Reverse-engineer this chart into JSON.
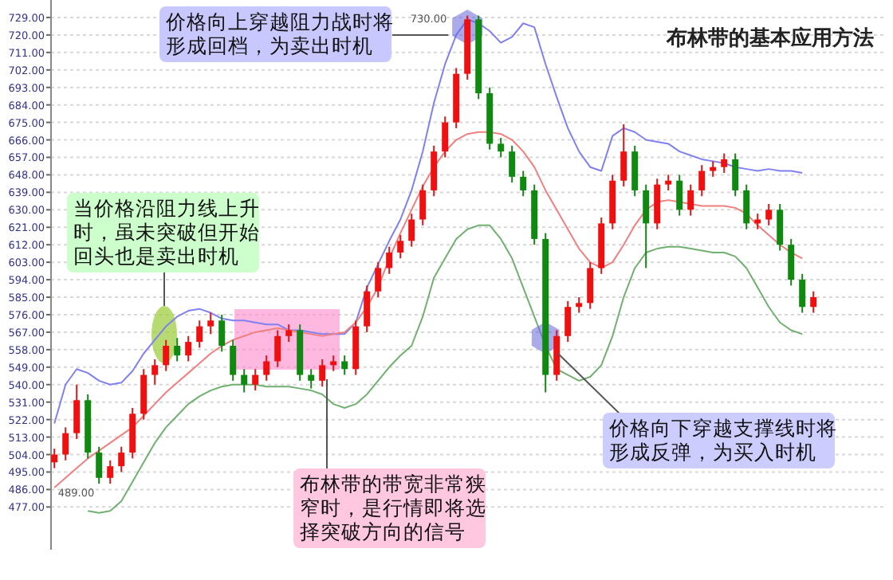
{
  "chart_data": {
    "type": "candlestick",
    "title": "布林带的基本应用方法",
    "categories": [
      null,
      null,
      null,
      null,
      null,
      null,
      null,
      null,
      null,
      null,
      null,
      null,
      null,
      null,
      null,
      null,
      null,
      null,
      null,
      null,
      null,
      null,
      null,
      null,
      null,
      null,
      null,
      null,
      null,
      null,
      null,
      null,
      null,
      null,
      null,
      null,
      null,
      null,
      null,
      null,
      null,
      null,
      null,
      null,
      null,
      null,
      null,
      null,
      null,
      null,
      null,
      null,
      null,
      null,
      null,
      null,
      null,
      null,
      null,
      null,
      null,
      null,
      null,
      null,
      null,
      null,
      null,
      null,
      null
    ],
    "ohlc": [
      [
        500,
        507,
        497,
        504
      ],
      [
        504,
        518,
        501,
        515
      ],
      [
        515,
        540,
        512,
        532
      ],
      [
        532,
        535,
        502,
        505
      ],
      [
        505,
        508,
        489,
        492
      ],
      [
        492,
        501,
        489,
        498
      ],
      [
        498,
        508,
        495,
        505
      ],
      [
        505,
        528,
        502,
        525
      ],
      [
        525,
        548,
        522,
        545
      ],
      [
        545,
        553,
        540,
        550
      ],
      [
        550,
        563,
        547,
        560
      ],
      [
        560,
        564,
        552,
        555
      ],
      [
        555,
        565,
        552,
        562
      ],
      [
        562,
        573,
        559,
        570
      ],
      [
        570,
        577,
        566,
        573
      ],
      [
        573,
        576,
        557,
        560
      ],
      [
        560,
        563,
        542,
        545
      ],
      [
        545,
        548,
        536,
        540
      ],
      [
        540,
        548,
        537,
        545
      ],
      [
        545,
        555,
        542,
        552
      ],
      [
        552,
        568,
        549,
        565
      ],
      [
        565,
        571,
        562,
        568
      ],
      [
        568,
        571,
        542,
        545
      ],
      [
        545,
        548,
        538,
        542
      ],
      [
        542,
        553,
        539,
        550
      ],
      [
        550,
        555,
        547,
        552
      ],
      [
        552,
        555,
        545,
        548
      ],
      [
        548,
        573,
        545,
        570
      ],
      [
        570,
        591,
        567,
        588
      ],
      [
        588,
        603,
        585,
        600
      ],
      [
        600,
        611,
        597,
        608
      ],
      [
        608,
        617,
        605,
        614
      ],
      [
        614,
        628,
        611,
        625
      ],
      [
        625,
        643,
        622,
        640
      ],
      [
        640,
        663,
        637,
        660
      ],
      [
        660,
        678,
        657,
        675
      ],
      [
        675,
        703,
        672,
        700
      ],
      [
        700,
        730,
        697,
        728
      ],
      [
        728,
        730,
        687,
        690
      ],
      [
        690,
        693,
        661,
        664
      ],
      [
        664,
        667,
        657,
        660
      ],
      [
        660,
        663,
        644,
        647
      ],
      [
        647,
        650,
        637,
        640
      ],
      [
        640,
        643,
        612,
        615
      ],
      [
        615,
        618,
        536,
        545
      ],
      [
        545,
        568,
        542,
        565
      ],
      [
        565,
        583,
        562,
        580
      ],
      [
        580,
        585,
        577,
        582
      ],
      [
        582,
        603,
        579,
        600
      ],
      [
        600,
        626,
        597,
        623
      ],
      [
        623,
        648,
        620,
        645
      ],
      [
        645,
        674,
        642,
        660
      ],
      [
        660,
        663,
        637,
        640
      ],
      [
        640,
        643,
        600,
        623
      ],
      [
        623,
        646,
        620,
        643
      ],
      [
        643,
        648,
        640,
        645
      ],
      [
        645,
        648,
        627,
        630
      ],
      [
        630,
        643,
        627,
        640
      ],
      [
        640,
        653,
        637,
        650
      ],
      [
        650,
        655,
        647,
        652
      ],
      [
        652,
        659,
        649,
        656
      ],
      [
        656,
        659,
        637,
        640
      ],
      [
        640,
        643,
        620,
        623
      ],
      [
        623,
        628,
        620,
        625
      ],
      [
        625,
        633,
        622,
        630
      ],
      [
        630,
        633,
        609,
        612
      ],
      [
        612,
        615,
        591,
        594
      ],
      [
        594,
        597,
        577,
        580
      ],
      [
        580,
        588,
        577,
        585
      ]
    ],
    "series": [
      {
        "type": "line",
        "color": "#8080f0",
        "values": [
          520,
          540,
          548,
          546,
          542,
          540,
          541,
          547,
          556,
          563,
          570,
          575,
          578,
          579,
          577,
          574,
          573,
          573,
          572,
          571,
          571,
          568,
          568,
          567,
          566,
          566,
          566,
          572,
          590,
          602,
          614,
          625,
          640,
          660,
          685,
          705,
          720,
          728,
          726,
          722,
          716,
          719,
          726,
          724,
          705,
          688,
          672,
          660,
          652,
          650,
          668,
          672,
          670,
          666,
          665,
          664,
          660,
          658,
          656,
          655,
          654,
          652,
          651,
          650,
          651,
          650,
          650,
          649,
          null
        ]
      },
      {
        "type": "line",
        "color": "#f08080",
        "values": [
          487,
          492,
          497,
          502,
          506,
          510,
          514,
          518,
          524,
          530,
          536,
          541,
          546,
          551,
          556,
          560,
          563,
          565,
          567,
          568,
          569,
          568,
          567,
          566,
          565,
          566,
          567,
          572,
          580,
          590,
          605,
          618,
          630,
          642,
          652,
          660,
          666,
          669,
          670,
          670,
          669,
          666,
          660,
          652,
          640,
          630,
          620,
          610,
          603,
          600,
          603,
          612,
          622,
          630,
          634,
          635,
          634,
          633,
          632,
          632,
          632,
          631,
          628,
          622,
          617,
          612,
          608,
          605,
          null
        ]
      },
      {
        "type": "line",
        "color": "#70b070",
        "values": [
          null,
          null,
          null,
          475,
          474,
          475,
          480,
          490,
          500,
          510,
          518,
          524,
          530,
          534,
          537,
          539,
          540,
          540,
          540,
          539,
          539,
          539,
          538,
          537,
          535,
          530,
          528,
          530,
          535,
          542,
          549,
          555,
          560,
          575,
          595,
          605,
          615,
          620,
          622,
          622,
          615,
          605,
          590,
          575,
          560,
          548,
          545,
          542,
          544,
          550,
          565,
          585,
          600,
          608,
          610,
          611,
          611,
          610,
          609,
          608,
          608,
          606,
          600,
          590,
          580,
          572,
          568,
          566,
          null
        ]
      }
    ],
    "ylim": [
      455,
      738
    ],
    "yticks": [
      {
        "value": 477,
        "label": "477.00"
      },
      {
        "value": 486,
        "label": "486.00"
      },
      {
        "value": 495,
        "label": "495.00"
      },
      {
        "value": 504,
        "label": "504.00"
      },
      {
        "value": 513,
        "label": "513.00"
      },
      {
        "value": 522,
        "label": "522.00"
      },
      {
        "value": 531,
        "label": "531.00"
      },
      {
        "value": 540,
        "label": "540.00"
      },
      {
        "value": 549,
        "label": "549.00"
      },
      {
        "value": 558,
        "label": "558.00"
      },
      {
        "value": 567,
        "label": "567.00"
      },
      {
        "value": 576,
        "label": "576.00"
      },
      {
        "value": 585,
        "label": "585.00"
      },
      {
        "value": 594,
        "label": "594.00"
      },
      {
        "value": 603,
        "label": "603.00"
      },
      {
        "value": 612,
        "label": "612.00"
      },
      {
        "value": 621,
        "label": "621.00"
      },
      {
        "value": 630,
        "label": "630.00"
      },
      {
        "value": 639,
        "label": "639.00"
      },
      {
        "value": 648,
        "label": "648.00"
      },
      {
        "value": 657,
        "label": "657.00"
      },
      {
        "value": 666,
        "label": "666.00"
      },
      {
        "value": 675,
        "label": "675.00"
      },
      {
        "value": 684,
        "label": "684.00"
      },
      {
        "value": 693,
        "label": "693.00"
      },
      {
        "value": 702,
        "label": "702.00"
      },
      {
        "value": 711,
        "label": "711.00"
      },
      {
        "value": 720,
        "label": "720.00"
      },
      {
        "value": 729,
        "label": "729.00"
      }
    ],
    "grid": "y",
    "annotations": [
      "价格向上穿越阻力战时将形成回档，为卖出时机",
      "当价格沿阻力线上升时，虽未突破但开始回头也是卖出时机",
      "布林带的带宽非常狭窄时，是行情即将选择突破方向的信号",
      "价格向下穿越支撑线时将形成反弹，为买入时机",
      "730.00",
      "489.00"
    ]
  }
}
